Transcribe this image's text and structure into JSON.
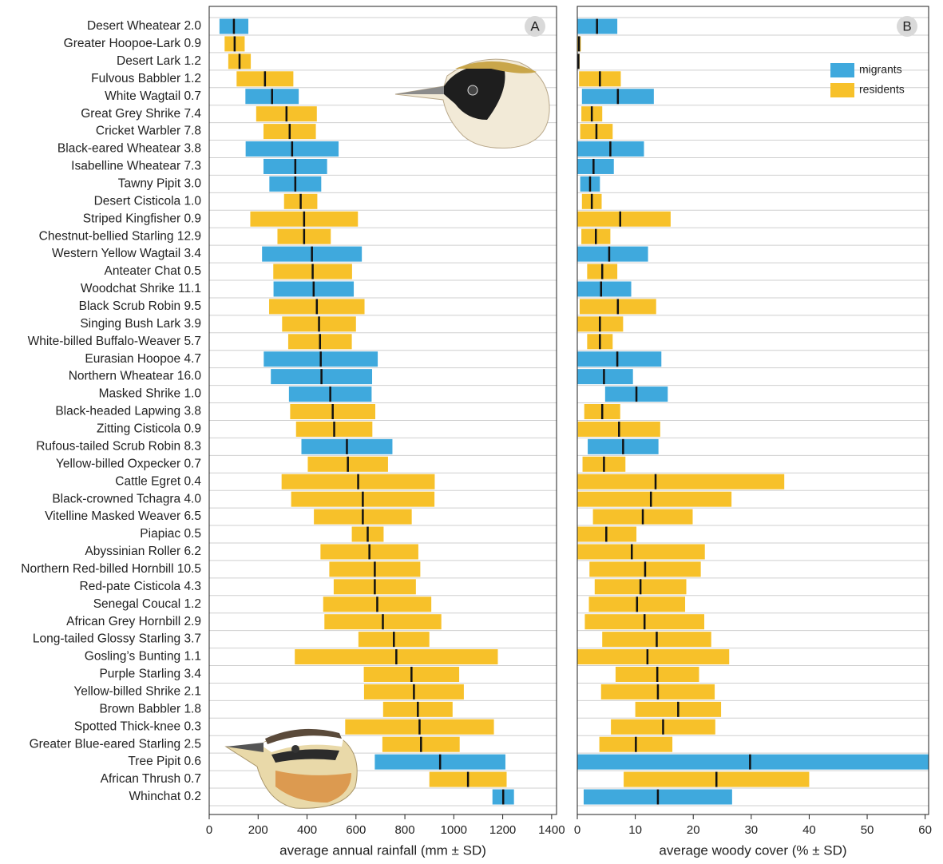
{
  "chart_data": [
    {
      "type": "bar",
      "orientation": "horizontal",
      "label": "A",
      "xlabel": "average annual rainfall (mm ± SD)",
      "xlim": [
        0,
        1420
      ],
      "xticks": [
        0,
        200,
        400,
        600,
        800,
        1000,
        1200,
        1400
      ],
      "categories": [
        "Desert Wheatear 2.0",
        "Greater Hoopoe-Lark 0.9",
        "Desert Lark 1.2",
        "Fulvous Babbler 1.2",
        "White Wagtail 0.7",
        "Great Grey Shrike 7.4",
        "Cricket Warbler 7.8",
        "Black-eared Wheatear 3.8",
        "Isabelline Wheatear 7.3",
        "Tawny Pipit 3.0",
        "Desert Cisticola 1.0",
        "Striped Kingfisher 0.9",
        "Chestnut-bellied Starling 12.9",
        "Western Yellow Wagtail 3.4",
        "Anteater Chat 0.5",
        "Woodchat Shrike 11.1",
        "Black Scrub Robin 9.5",
        "Singing Bush Lark 3.9",
        "White-billed Buffalo-Weaver 5.7",
        "Eurasian Hoopoe 4.7",
        "Northern Wheatear 16.0",
        "Masked Shrike 1.0",
        "Black-headed Lapwing 3.8",
        "Zitting Cisticola 0.9",
        "Rufous-tailed Scrub Robin 8.3",
        "Yellow-billed Oxpecker 0.7",
        "Cattle Egret 0.4",
        "Black-crowned Tchagra 4.0",
        "Vitelline Masked Weaver 6.5",
        "Piapiac 0.5",
        "Abyssinian Roller 6.2",
        "Northern Red-billed Hornbill 10.5",
        "Red-pate Cisticola 4.3",
        "Senegal Coucal 1.2",
        "African Grey Hornbill 2.9",
        "Long-tailed Glossy Starling 3.7",
        "Gosling’s Bunting 1.1",
        "Purple Starling 3.4",
        "Yellow-billed Shrike 2.1",
        "Brown Babbler 1.8",
        "Spotted Thick-knee 0.3",
        "Greater Blue-eared Starling 2.5",
        "Tree Pipit 0.6",
        "African Thrush 0.7",
        "Whinchat 0.2"
      ],
      "series": [
        {
          "color": "#3fa9dd",
          "values": [
            101,
            null,
            null,
            null,
            257,
            null,
            null,
            339,
            352,
            352,
            null,
            null,
            null,
            420,
            null,
            427,
            null,
            null,
            null,
            456,
            459,
            495,
            null,
            null,
            563,
            null,
            null,
            null,
            null,
            null,
            null,
            null,
            null,
            null,
            null,
            null,
            null,
            null,
            null,
            null,
            null,
            null,
            944,
            null,
            1202
          ],
          "errors": [
            59,
            null,
            null,
            null,
            109,
            null,
            null,
            190,
            130,
            106,
            null,
            null,
            null,
            204,
            null,
            164,
            null,
            null,
            null,
            233,
            207,
            169,
            null,
            null,
            186,
            null,
            null,
            null,
            null,
            null,
            null,
            null,
            null,
            null,
            null,
            null,
            null,
            null,
            null,
            null,
            null,
            null,
            267,
            null,
            44
          ]
        },
        {
          "color": "#f7c12a",
          "values": [
            null,
            104,
            124,
            228,
            null,
            316,
            329,
            null,
            null,
            null,
            374,
            388,
            388,
            null,
            423,
            null,
            440,
            449,
            453,
            null,
            null,
            null,
            505,
            511,
            null,
            567,
            609,
            628,
            628,
            648,
            655,
            677,
            677,
            687,
            710,
            755,
            765,
            827,
            837,
            853,
            860,
            866,
            null,
            1058,
            null
          ],
          "errors": [
            null,
            41,
            46,
            116,
            null,
            124,
            107,
            null,
            null,
            null,
            68,
            220,
            109,
            null,
            161,
            null,
            195,
            151,
            130,
            null,
            null,
            null,
            174,
            156,
            null,
            164,
            313,
            293,
            200,
            65,
            200,
            186,
            168,
            221,
            239,
            145,
            415,
            195,
            204,
            142,
            304,
            158,
            null,
            158,
            null
          ]
        }
      ]
    },
    {
      "type": "bar",
      "orientation": "horizontal",
      "label": "B",
      "xlabel": "average woody cover (% ± SD)",
      "xlim": [
        0,
        60.6
      ],
      "xticks": [
        0,
        10,
        20,
        30,
        40,
        50,
        60
      ],
      "legend": "upper right",
      "series": [
        {
          "name": "migrants",
          "color": "#3fa9dd",
          "values": [
            3.4,
            null,
            null,
            null,
            7.0,
            null,
            null,
            5.7,
            2.8,
            2.2,
            null,
            null,
            null,
            5.5,
            null,
            4.1,
            null,
            null,
            null,
            6.9,
            4.6,
            10.2,
            null,
            null,
            7.9,
            null,
            null,
            null,
            null,
            null,
            null,
            null,
            null,
            null,
            null,
            null,
            null,
            null,
            null,
            null,
            null,
            null,
            29.8,
            null,
            13.9
          ],
          "errors": [
            3.5,
            null,
            null,
            null,
            6.2,
            null,
            null,
            5.8,
            3.5,
            1.7,
            null,
            null,
            null,
            6.7,
            null,
            5.2,
            null,
            null,
            null,
            7.6,
            5.0,
            5.4,
            null,
            null,
            6.1,
            null,
            null,
            null,
            null,
            null,
            null,
            null,
            null,
            null,
            null,
            null,
            null,
            null,
            null,
            null,
            null,
            null,
            31,
            null,
            12.8
          ]
        },
        {
          "name": "residents",
          "color": "#f7c12a",
          "values": [
            null,
            0.3,
            0.2,
            3.9,
            null,
            2.5,
            3.3,
            null,
            null,
            null,
            2.5,
            7.4,
            3.2,
            null,
            4.3,
            null,
            7.0,
            3.9,
            3.9,
            null,
            null,
            null,
            4.3,
            7.2,
            null,
            4.6,
            13.5,
            12.7,
            11.3,
            5.0,
            9.4,
            11.7,
            10.9,
            10.3,
            11.6,
            13.7,
            12.1,
            13.8,
            13.9,
            17.4,
            14.8,
            10.1,
            null,
            24.0,
            null
          ],
          "errors": [
            null,
            0.3,
            0.2,
            3.6,
            null,
            1.8,
            2.8,
            null,
            null,
            null,
            1.7,
            8.7,
            2.5,
            null,
            2.6,
            null,
            6.6,
            4.0,
            2.2,
            null,
            null,
            null,
            3.1,
            7.1,
            null,
            3.7,
            22.2,
            13.9,
            8.6,
            5.2,
            12.6,
            9.6,
            7.9,
            8.3,
            10.3,
            9.4,
            14.1,
            7.2,
            9.8,
            7.4,
            9.0,
            6.3,
            null,
            16.0,
            null
          ]
        }
      ]
    }
  ]
}
